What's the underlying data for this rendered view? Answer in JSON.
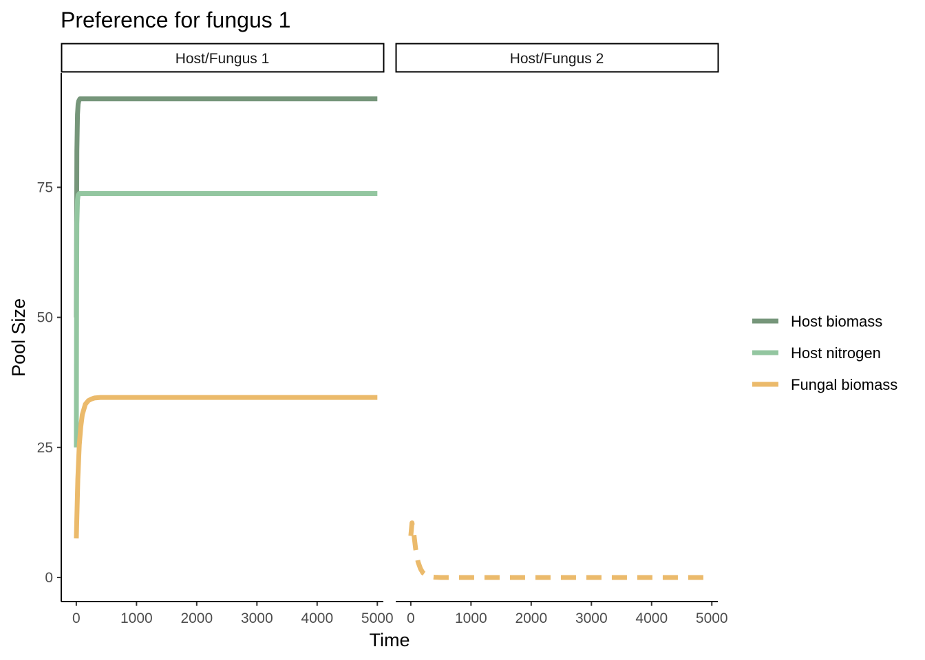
{
  "chart_data": {
    "type": "line",
    "title": "Preference for fungus 1",
    "xlabel": "Time",
    "ylabel": "Pool Size",
    "xlim": [
      -250,
      5100
    ],
    "ylim": [
      -4.5,
      97
    ],
    "xticks": [
      0,
      1000,
      2000,
      3000,
      4000,
      5000
    ],
    "yticks": [
      0,
      25,
      50,
      75
    ],
    "grid": false,
    "legend_position": "right",
    "panels": [
      {
        "label": "Host/Fungus 1",
        "series": [
          {
            "name": "Host biomass",
            "color": "#76967a",
            "dash": "solid",
            "x": [
              0,
              10,
              20,
              30,
              40,
              60,
              100,
              200,
              5000
            ],
            "y": [
              50,
              82,
              89,
              91,
              91.6,
              92,
              92,
              92,
              92
            ]
          },
          {
            "name": "Host nitrogen",
            "color": "#93c6a0",
            "dash": "solid",
            "x": [
              0,
              5,
              10,
              20,
              30,
              50,
              100,
              5000
            ],
            "y": [
              25,
              55,
              68,
              72.5,
              73.5,
              73.8,
              73.8,
              73.8
            ]
          },
          {
            "name": "Fungal biomass",
            "color": "#ebba6b",
            "dash": "solid",
            "x": [
              0,
              25,
              50,
              75,
              100,
              150,
              200,
              250,
              300,
              400,
              600,
              5000
            ],
            "y": [
              7.5,
              19,
              25.5,
              29,
              31.3,
              33.3,
              34,
              34.3,
              34.5,
              34.6,
              34.6,
              34.6
            ]
          }
        ]
      },
      {
        "label": "Host/Fungus 2",
        "series": [
          {
            "name": "Fungal biomass",
            "color": "#ebba6b",
            "dash": "dashed",
            "x": [
              0,
              20,
              50,
              80,
              120,
              160,
              200,
              260,
              320,
              400,
              500,
              5000
            ],
            "y": [
              8,
              10.5,
              8.5,
              5.5,
              3,
              1.7,
              0.9,
              0.4,
              0.15,
              0.05,
              0,
              0
            ]
          }
        ]
      }
    ],
    "legend": [
      {
        "name": "Host biomass",
        "color": "#76967a"
      },
      {
        "name": "Host nitrogen",
        "color": "#93c6a0"
      },
      {
        "name": "Fungal biomass",
        "color": "#ebba6b"
      }
    ]
  }
}
